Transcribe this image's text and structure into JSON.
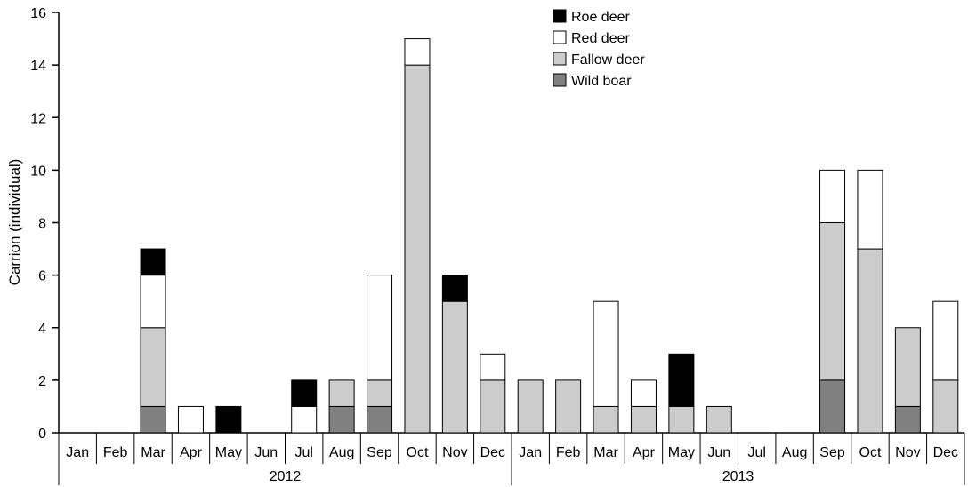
{
  "chart_data": {
    "type": "bar",
    "stacked": true,
    "ylabel": "Carrion (individual)",
    "ylim": [
      0,
      16
    ],
    "yticks": [
      0,
      2,
      4,
      6,
      8,
      10,
      12,
      14,
      16
    ],
    "grid": false,
    "legend_position": "top-center",
    "categories": [
      "Jan",
      "Feb",
      "Mar",
      "Apr",
      "May",
      "Jun",
      "Jul",
      "Aug",
      "Sep",
      "Oct",
      "Nov",
      "Dec",
      "Jan",
      "Feb",
      "Mar",
      "Apr",
      "May",
      "Jun",
      "Jul",
      "Aug",
      "Sep",
      "Oct",
      "Nov",
      "Dec"
    ],
    "groups": [
      {
        "label": "2012",
        "start": 0,
        "end": 11
      },
      {
        "label": "2013",
        "start": 12,
        "end": 23
      }
    ],
    "series": [
      {
        "name": "Wild boar",
        "color": "#808080",
        "values": [
          0,
          0,
          1,
          0,
          0,
          0,
          0,
          1,
          1,
          0,
          0,
          0,
          0,
          0,
          0,
          0,
          0,
          0,
          0,
          0,
          2,
          0,
          1,
          0
        ]
      },
      {
        "name": "Fallow deer",
        "color": "#cccccc",
        "values": [
          0,
          0,
          3,
          0,
          0,
          0,
          0,
          1,
          1,
          14,
          5,
          2,
          2,
          2,
          1,
          1,
          1,
          1,
          0,
          0,
          6,
          7,
          3,
          2
        ]
      },
      {
        "name": "Red deer",
        "color": "#ffffff",
        "values": [
          0,
          0,
          2,
          1,
          0,
          0,
          1,
          0,
          4,
          1,
          0,
          1,
          0,
          0,
          4,
          1,
          0,
          0,
          0,
          0,
          2,
          3,
          0,
          3
        ]
      },
      {
        "name": "Roe deer",
        "color": "#000000",
        "values": [
          0,
          0,
          1,
          0,
          1,
          0,
          1,
          0,
          0,
          0,
          1,
          0,
          0,
          0,
          0,
          0,
          2,
          0,
          0,
          0,
          0,
          0,
          0,
          0
        ]
      }
    ],
    "legend_order": [
      "Roe deer",
      "Red deer",
      "Fallow deer",
      "Wild boar"
    ]
  }
}
